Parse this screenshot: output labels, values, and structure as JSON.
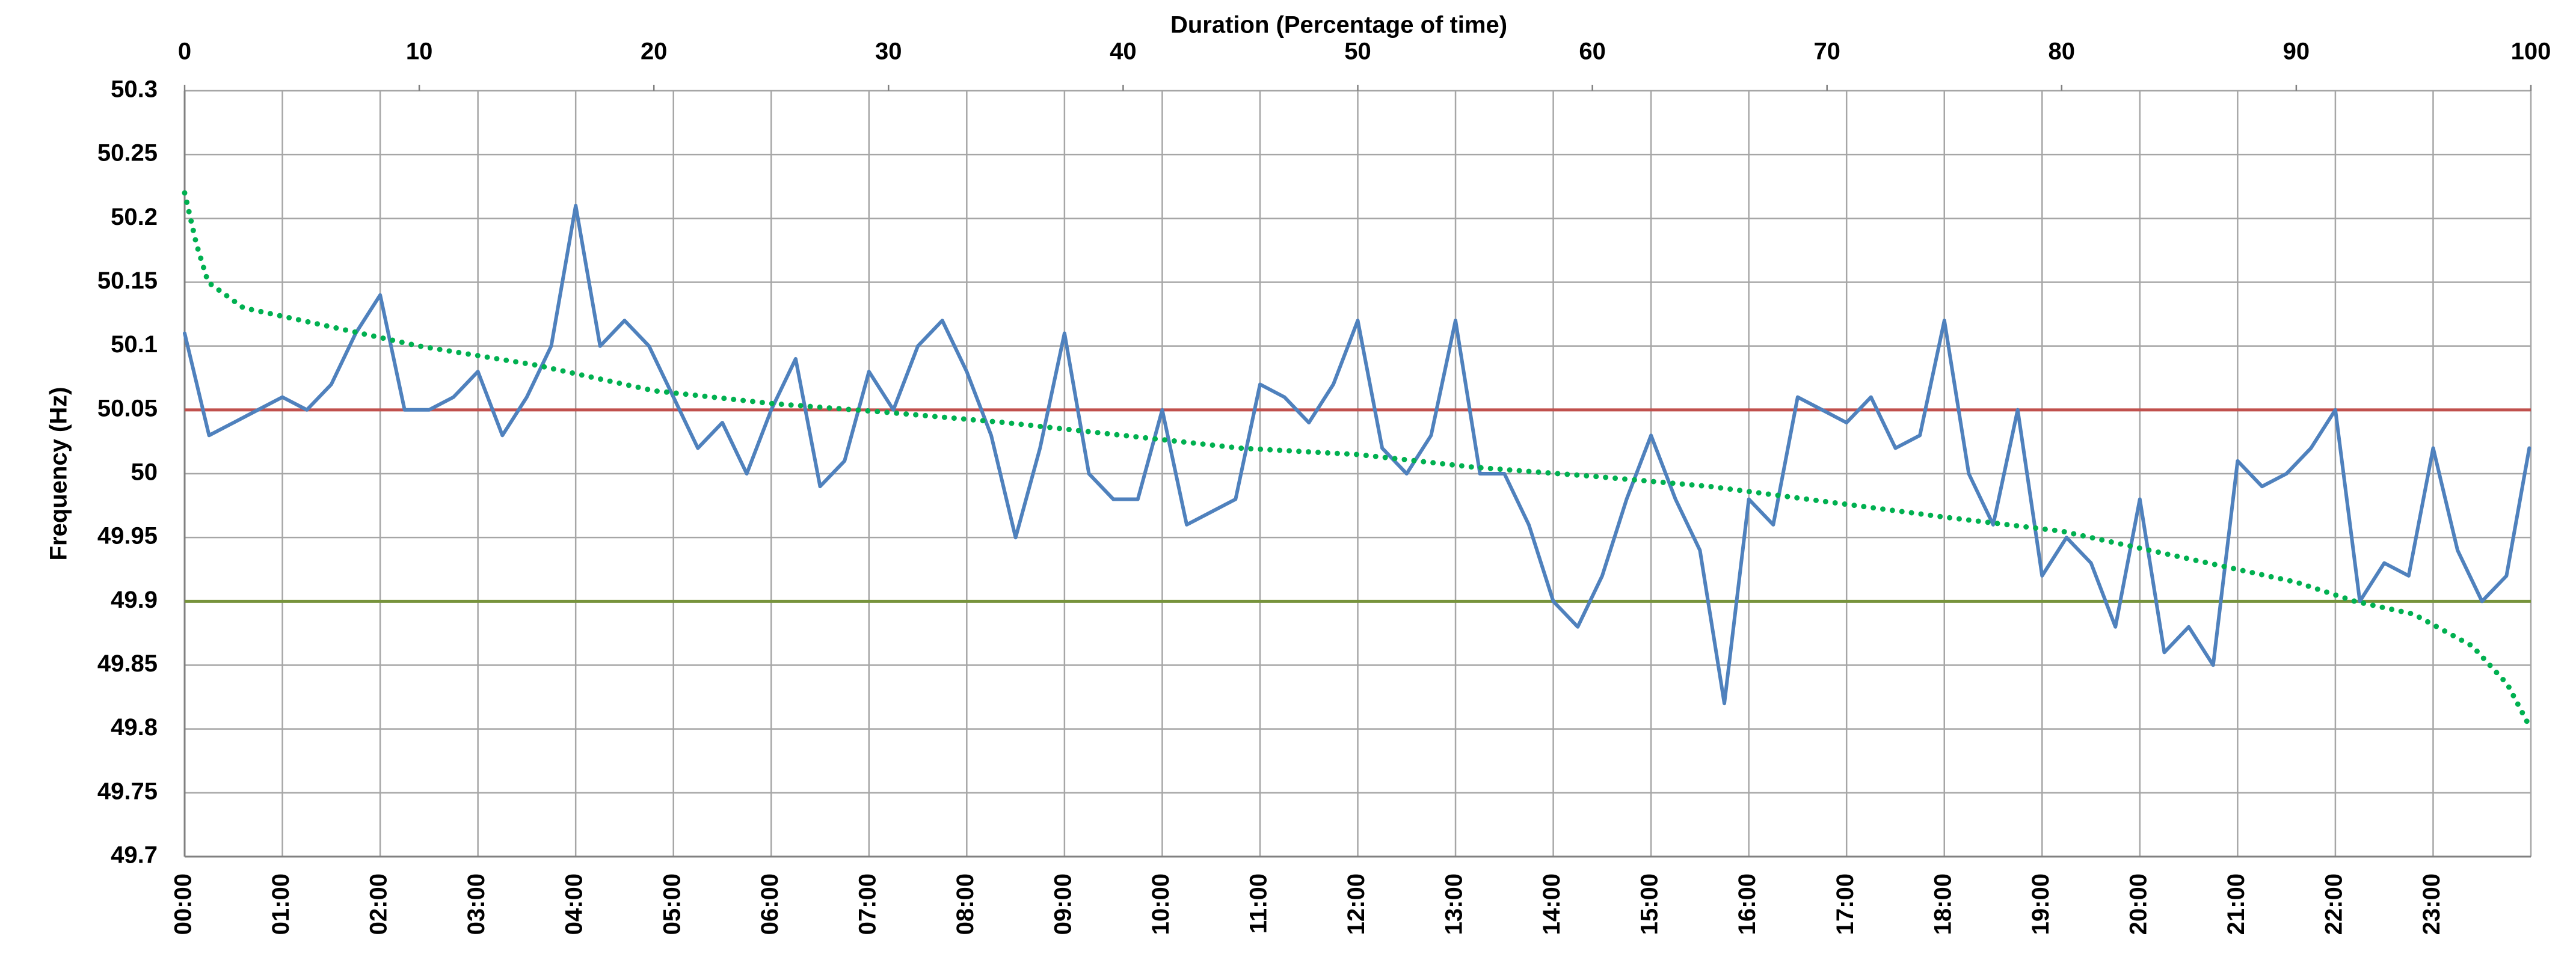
{
  "chart_data": {
    "type": "line",
    "x_label": "Duration (Percentage of time)",
    "y_label": "Frequency (Hz)",
    "xlim": [
      "00:00",
      "24:00"
    ],
    "xticks": [
      "00:00",
      "01:00",
      "02:00",
      "03:00",
      "04:00",
      "05:00",
      "06:00",
      "07:00",
      "08:00",
      "09:00",
      "10:00",
      "11:00",
      "12:00",
      "13:00",
      "14:00",
      "15:00",
      "16:00",
      "17:00",
      "18:00",
      "19:00",
      "20:00",
      "21:00",
      "22:00",
      "23:00"
    ],
    "x2lim": [
      0,
      100
    ],
    "x2ticks": [
      0,
      10,
      20,
      30,
      40,
      50,
      60,
      70,
      80,
      90,
      100
    ],
    "ylim": [
      49.7,
      50.3
    ],
    "yticks": [
      49.7,
      49.75,
      49.8,
      49.85,
      49.9,
      49.95,
      50,
      50.05,
      50.1,
      50.15,
      50.2,
      50.25,
      50.3
    ],
    "grid": true,
    "hlines": [
      {
        "value": 50.05,
        "color": "#c0504d"
      },
      {
        "value": 49.9,
        "color": "#77933c"
      }
    ],
    "series": [
      {
        "color": "#4f81bd",
        "x": [
          "00:00",
          "00:15",
          "00:30",
          "00:45",
          "01:00",
          "01:15",
          "01:30",
          "01:45",
          "02:00",
          "02:15",
          "02:30",
          "02:45",
          "03:00",
          "03:15",
          "03:30",
          "03:45",
          "04:00",
          "04:15",
          "04:30",
          "04:45",
          "05:00",
          "05:15",
          "05:30",
          "05:45",
          "06:00",
          "06:15",
          "06:30",
          "06:45",
          "07:00",
          "07:15",
          "07:30",
          "07:45",
          "08:00",
          "08:15",
          "08:30",
          "08:45",
          "09:00",
          "09:15",
          "09:30",
          "09:45",
          "10:00",
          "10:15",
          "10:30",
          "10:45",
          "11:00",
          "11:15",
          "11:30",
          "11:45",
          "12:00",
          "12:15",
          "12:30",
          "12:45",
          "13:00",
          "13:15",
          "13:30",
          "13:45",
          "14:00",
          "14:15",
          "14:30",
          "14:45",
          "15:00",
          "15:15",
          "15:30",
          "15:45",
          "16:00",
          "16:15",
          "16:30",
          "16:45",
          "17:00",
          "17:15",
          "17:30",
          "17:45",
          "18:00",
          "18:15",
          "18:30",
          "18:45",
          "19:00",
          "19:15",
          "19:30",
          "19:45",
          "20:00",
          "20:15",
          "20:30",
          "20:45",
          "21:00",
          "21:15",
          "21:30",
          "21:45",
          "22:00",
          "22:15",
          "22:30",
          "22:45",
          "23:00",
          "23:15",
          "23:30",
          "23:45",
          "23:59"
        ],
        "values": [
          50.11,
          50.03,
          50.04,
          50.05,
          50.06,
          50.05,
          50.07,
          50.11,
          50.14,
          50.05,
          50.05,
          50.06,
          50.08,
          50.03,
          50.06,
          50.1,
          50.21,
          50.1,
          50.12,
          50.1,
          50.06,
          50.02,
          50.04,
          50.0,
          50.05,
          50.09,
          49.99,
          50.01,
          50.08,
          50.05,
          50.1,
          50.12,
          50.08,
          50.03,
          49.95,
          50.02,
          50.11,
          50.0,
          49.98,
          49.98,
          50.05,
          49.96,
          49.97,
          49.98,
          50.07,
          50.06,
          50.04,
          50.07,
          50.12,
          50.02,
          50.0,
          50.03,
          50.12,
          50.0,
          50.0,
          49.96,
          49.9,
          49.88,
          49.92,
          49.98,
          50.03,
          49.98,
          49.94,
          49.82,
          49.98,
          49.96,
          50.06,
          50.05,
          50.04,
          50.06,
          50.02,
          50.03,
          50.12,
          50.0,
          49.96,
          50.05,
          49.92,
          49.95,
          49.93,
          49.88,
          49.98,
          49.86,
          49.88,
          49.85,
          50.01,
          49.99,
          50.0,
          50.02,
          50.05,
          49.9,
          49.93,
          49.92,
          50.02,
          49.94,
          49.9,
          49.92,
          50.02
        ]
      },
      {
        "color": "#00b050",
        "axis": "x2",
        "x": [
          0,
          0.5,
          1,
          2.5,
          5,
          7.5,
          10,
          15,
          20,
          25,
          30,
          35,
          40,
          45,
          50,
          55,
          60,
          65,
          70,
          75,
          80,
          85,
          90,
          92.5,
          95,
          97.5,
          99,
          100
        ],
        "values": [
          50.22,
          50.18,
          50.15,
          50.13,
          50.12,
          50.11,
          50.1,
          50.085,
          50.065,
          50.055,
          50.048,
          50.04,
          50.03,
          50.02,
          50.015,
          50.005,
          49.998,
          49.99,
          49.978,
          49.966,
          49.955,
          49.935,
          49.915,
          49.9,
          49.89,
          49.865,
          49.835,
          49.8
        ]
      }
    ]
  }
}
